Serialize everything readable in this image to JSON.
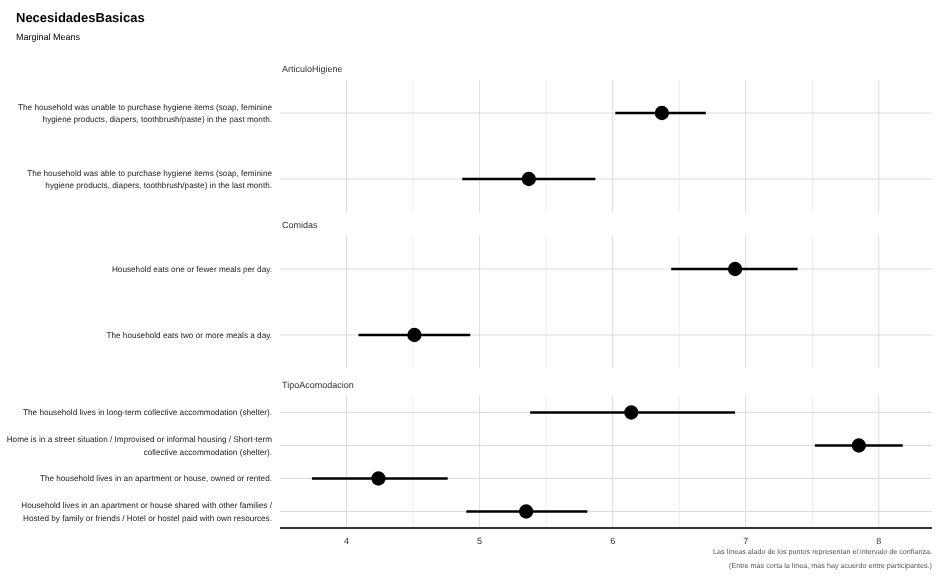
{
  "chart_data": [
    {
      "type": "scatter",
      "title": "NecesidadesBasicas",
      "subtitle": "Marginal Means",
      "xlabel": "ArticuloHigiene",
      "orientation": "horizontal",
      "categories": [
        "The household was unable to purchase hygiene items (soap, feminine hygiene products, diapers, toothbrush/paste) in the past month.",
        "The household was able to purchase hygiene items (soap, feminine hygiene products, diapers, toothbrush/paste) in the last month."
      ],
      "values": [
        6.37,
        5.37
      ],
      "errors": [
        [
          6.02,
          6.7
        ],
        [
          4.87,
          5.87
        ]
      ],
      "color": "#000000",
      "marker": "circle",
      "xlim": [
        3.5,
        8.4
      ],
      "xticks": [
        4,
        {
          "value": 4.5,
          "label": null
        },
        5,
        {
          "value": 5.5,
          "label": null
        },
        6,
        {
          "value": 6.5,
          "label": null
        },
        7,
        {
          "value": 7.5,
          "label": null
        },
        8
      ],
      "grid": true,
      "tick_labels": "y"
    },
    {
      "type": "scatter",
      "xlabel": "Comidas",
      "orientation": "horizontal",
      "categories": [
        "Household eats one or fewer meals per day.",
        "The household eats two or more meals a day."
      ],
      "values": [
        6.92,
        4.51
      ],
      "errors": [
        [
          6.44,
          7.39
        ],
        [
          4.09,
          4.93
        ]
      ],
      "color": "#000000",
      "marker": "circle",
      "xlim": [
        3.5,
        8.4
      ],
      "xticks": [
        4,
        {
          "value": 4.5,
          "label": null
        },
        5,
        {
          "value": 5.5,
          "label": null
        },
        6,
        {
          "value": 6.5,
          "label": null
        },
        7,
        {
          "value": 7.5,
          "label": null
        },
        8
      ],
      "grid": true,
      "tick_labels": "y"
    },
    {
      "type": "scatter",
      "xlabel": "TipoAcomodacion",
      "orientation": "horizontal",
      "categories": [
        "The household lives in long-term collective accommodation (shelter).",
        "Home is in a street situation / Improvised or informal housing / Short-term collective accommodation (shelter).",
        "The household lives in an apartment or house, owned or rented.",
        "Household lives in an apartment or house shared with other families / Hosted by family or friends / Hotel or hostel paid with own resources."
      ],
      "values": [
        6.14,
        7.85,
        4.24,
        5.35
      ],
      "errors": [
        [
          5.38,
          6.92
        ],
        [
          7.52,
          8.18
        ],
        [
          3.74,
          4.76
        ],
        [
          4.9,
          5.81
        ]
      ],
      "color": "#000000",
      "marker": "circle",
      "xlim": [
        3.5,
        8.4
      ],
      "xticks": [
        4,
        {
          "value": 4.5,
          "label": null
        },
        5,
        {
          "value": 5.5,
          "label": null
        },
        6,
        {
          "value": 6.5,
          "label": null
        },
        7,
        {
          "value": 7.5,
          "label": null
        },
        8
      ],
      "grid": true,
      "annotations": [
        "Las líneas alado de los puntos representan el intervalo de confianza.",
        "(Entre más corta la línea, más hay acuerdo entre participantes.)"
      ]
    }
  ]
}
